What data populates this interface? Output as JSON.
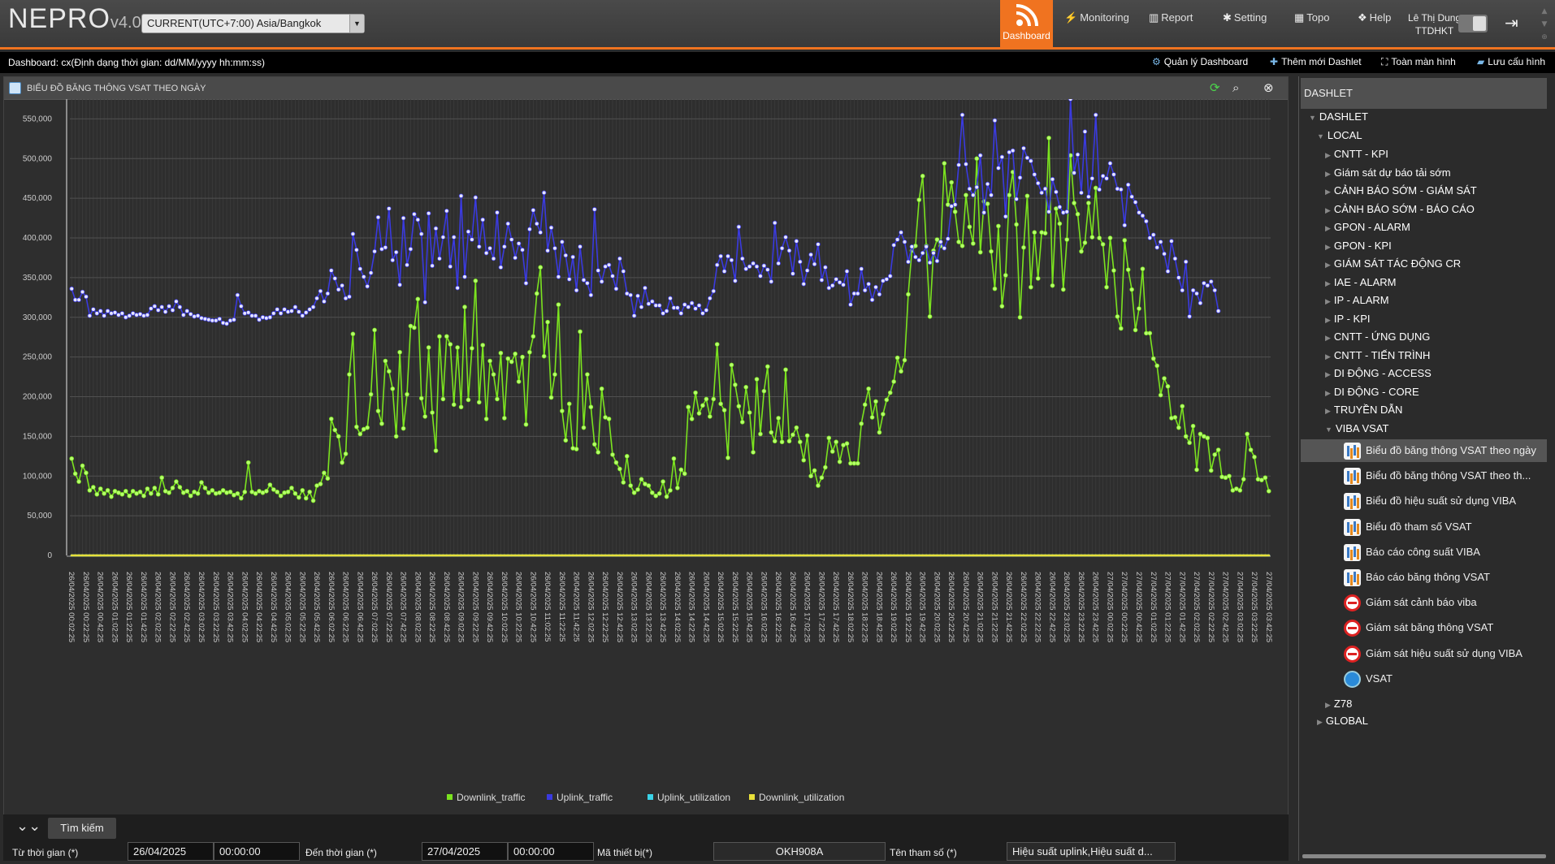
{
  "app": {
    "logo": "NEPRO",
    "version": "v4.0",
    "timezone": "CURRENT(UTC+7:00) Asia/Bangkok",
    "user_name": "Lê Thị Dung",
    "user_org": "TTDHKT"
  },
  "nav": {
    "dashboard": "Dashboard",
    "monitoring": "Monitoring",
    "report": "Report",
    "setting": "Setting",
    "topo": "Topo",
    "help": "Help"
  },
  "subbar": {
    "label": "Dashboard: cx(Định dạng thời gian: dd/MM/yyyy hh:mm:ss)",
    "manage": "Quản lý Dashboard",
    "add": "Thêm mới Dashlet",
    "fullscreen": "Toàn màn hình",
    "save": "Lưu cấu hình"
  },
  "panel": {
    "title": "BIỂU ĐỒ BĂNG THÔNG VSAT THEO NGÀY"
  },
  "chart_data": {
    "type": "line",
    "title": "",
    "xlabel": "",
    "ylabel": "",
    "ylim": [
      0,
      575000
    ],
    "yticks": [
      0,
      50000,
      100000,
      150000,
      200000,
      250000,
      300000,
      350000,
      400000,
      450000,
      500000,
      550000
    ],
    "ytick_labels": [
      "0",
      "50,000",
      "100,000",
      "150,000",
      "200,000",
      "250,000",
      "300,000",
      "350,000",
      "400,000",
      "450,000",
      "500,000",
      "550,000"
    ],
    "x_start": "26/04/2025 00:02:25",
    "x_step_minutes": 5,
    "x_label_every": 4,
    "grid": true,
    "legend_position": "bottom",
    "series": [
      {
        "name": "Downlink_traffic",
        "color": "#7be31f",
        "values": [
          122000,
          103000,
          93000,
          113000,
          104000,
          82000,
          86000,
          77000,
          84000,
          78000,
          82000,
          74000,
          81000,
          79000,
          77000,
          81000,
          75000,
          81000,
          78000,
          80000,
          75000,
          84000,
          78000,
          85000,
          77000,
          98000,
          81000,
          79000,
          85000,
          93000,
          86000,
          79000,
          81000,
          75000,
          80000,
          78000,
          92000,
          85000,
          79000,
          82000,
          78000,
          79000,
          82000,
          79000,
          80000,
          76000,
          78000,
          72000,
          80000,
          117000,
          80000,
          78000,
          81000,
          79000,
          81000,
          89000,
          83000,
          80000,
          75000,
          79000,
          80000,
          85000,
          78000,
          73000,
          82000,
          72000,
          80000,
          69000,
          88000,
          90000,
          104000,
          97000,
          172000,
          158000,
          150000,
          117000,
          128000,
          228000,
          279000,
          162000,
          153000,
          159000,
          161000,
          203000,
          284000,
          182000,
          166000,
          245000,
          232000,
          210000,
          150000,
          256000,
          160000,
          203000,
          289000,
          287000,
          323000,
          198000,
          175000,
          262000,
          180000,
          132000,
          276000,
          197000,
          276000,
          266000,
          190000,
          262000,
          187000,
          313000,
          196000,
          261000,
          346000,
          193000,
          265000,
          172000,
          245000,
          228000,
          197000,
          255000,
          173000,
          248000,
          244000,
          254000,
          219000,
          250000,
          165000,
          256000,
          276000,
          330000,
          363000,
          251000,
          294000,
          199000,
          228000,
          316000,
          182000,
          145000,
          191000,
          135000,
          134000,
          282000,
          161000,
          228000,
          187000,
          140000,
          130000,
          210000,
          174000,
          172000,
          127000,
          117000,
          109000,
          92000,
          125000,
          88000,
          79000,
          83000,
          96000,
          90000,
          88000,
          79000,
          75000,
          78000,
          93000,
          74000,
          82000,
          122000,
          85000,
          108000,
          103000,
          187000,
          172000,
          205000,
          179000,
          189000,
          197000,
          175000,
          197000,
          266000,
          191000,
          183000,
          123000,
          240000,
          215000,
          188000,
          168000,
          212000,
          180000,
          130000,
          222000,
          153000,
          207000,
          238000,
          155000,
          144000,
          173000,
          143000,
          234000,
          144000,
          152000,
          161000,
          143000,
          120000,
          151000,
          100000,
          107000,
          88000,
          98000,
          111000,
          148000,
          131000,
          143000,
          118000,
          139000,
          141000,
          116000,
          116000,
          116000,
          166000,
          190000,
          210000,
          174000,
          194000,
          155000,
          178000,
          196000,
          205000,
          219000,
          249000,
          232000,
          246000,
          329000,
          384000,
          390000,
          448000,
          478000,
          390000,
          301000,
          384000,
          398000,
          390000,
          494000,
          442000,
          470000,
          433000,
          395000,
          390000,
          454000,
          414000,
          393000,
          500000,
          382000,
          446000,
          443000,
          383000,
          336000,
          415000,
          314000,
          353000,
          454000,
          483000,
          417000,
          300000,
          388000,
          453000,
          338000,
          407000,
          349000,
          407000,
          406000,
          526000,
          340000,
          437000,
          418000,
          335000,
          398000,
          504000,
          444000,
          430000,
          383000,
          394000,
          444000,
          401000,
          463000,
          400000,
          392000,
          338000,
          400000,
          359000,
          301000,
          286000,
          397000,
          360000,
          335000,
          284000,
          311000,
          361000,
          280000,
          280000,
          248000,
          239000,
          202000,
          223000,
          213000,
          173000,
          174000,
          161000,
          188000,
          150000,
          142000,
          163000,
          108000,
          153000,
          150000,
          148000,
          107000,
          127000,
          133000,
          99000,
          98000,
          100000,
          82000,
          84000,
          82000,
          96000,
          153000,
          133000,
          124000,
          96000,
          95000,
          98000,
          81000
        ]
      },
      {
        "name": "Uplink_traffic",
        "color": "#3a3ae0",
        "values": [
          336000,
          322000,
          322000,
          332000,
          326000,
          302000,
          310000,
          305000,
          308000,
          302000,
          308000,
          305000,
          306000,
          303000,
          305000,
          300000,
          302000,
          305000,
          303000,
          304000,
          302000,
          303000,
          311000,
          314000,
          309000,
          313000,
          307000,
          314000,
          309000,
          320000,
          313000,
          303000,
          308000,
          304000,
          301000,
          302000,
          299000,
          298000,
          297000,
          296000,
          296000,
          298000,
          293000,
          292000,
          296000,
          297000,
          328000,
          314000,
          305000,
          306000,
          302000,
          302000,
          297000,
          300000,
          299000,
          300000,
          305000,
          310000,
          305000,
          310000,
          307000,
          308000,
          313000,
          307000,
          302000,
          306000,
          310000,
          313000,
          324000,
          333000,
          320000,
          330000,
          359000,
          349000,
          335000,
          340000,
          324000,
          326000,
          405000,
          385000,
          361000,
          351000,
          339000,
          356000,
          383000,
          426000,
          386000,
          388000,
          437000,
          372000,
          382000,
          341000,
          425000,
          366000,
          386000,
          430000,
          423000,
          405000,
          319000,
          431000,
          365000,
          412000,
          374000,
          401000,
          434000,
          364000,
          401000,
          337000,
          453000,
          351000,
          408000,
          398000,
          451000,
          389000,
          423000,
          381000,
          387000,
          374000,
          432000,
          363000,
          389000,
          418000,
          398000,
          375000,
          393000,
          385000,
          343000,
          411000,
          435000,
          418000,
          407000,
          457000,
          384000,
          413000,
          387000,
          351000,
          395000,
          378000,
          348000,
          376000,
          334000,
          389000,
          347000,
          343000,
          328000,
          436000,
          359000,
          345000,
          364000,
          366000,
          352000,
          336000,
          374000,
          358000,
          330000,
          328000,
          302000,
          327000,
          313000,
          337000,
          317000,
          320000,
          315000,
          315000,
          305000,
          308000,
          324000,
          312000,
          312000,
          305000,
          316000,
          313000,
          318000,
          311000,
          315000,
          305000,
          309000,
          324000,
          333000,
          366000,
          377000,
          358000,
          377000,
          372000,
          346000,
          414000,
          374000,
          361000,
          364000,
          368000,
          364000,
          352000,
          365000,
          360000,
          345000,
          419000,
          368000,
          387000,
          401000,
          384000,
          355000,
          396000,
          370000,
          342000,
          359000,
          379000,
          367000,
          392000,
          347000,
          363000,
          337000,
          340000,
          348000,
          344000,
          341000,
          358000,
          316000,
          330000,
          330000,
          361000,
          334000,
          342000,
          322000,
          338000,
          329000,
          346000,
          348000,
          352000,
          391000,
          398000,
          407000,
          395000,
          370000,
          389000,
          376000,
          372000,
          381000,
          389000,
          369000,
          381000,
          371000,
          395000,
          387000,
          399000,
          440000,
          442000,
          492000,
          555000,
          493000,
          462000,
          454000,
          464000,
          504000,
          432000,
          468000,
          454000,
          548000,
          488000,
          502000,
          427000,
          508000,
          510000,
          449000,
          476000,
          513000,
          501000,
          497000,
          480000,
          469000,
          457000,
          462000,
          433000,
          474000,
          458000,
          439000,
          432000,
          433000,
          575000,
          482000,
          505000,
          457000,
          534000,
          452000,
          475000,
          555000,
          461000,
          478000,
          475000,
          494000,
          480000,
          462000,
          461000,
          416000,
          467000,
          452000,
          445000,
          432000,
          428000,
          421000,
          400000,
          404000,
          388000,
          395000,
          380000,
          358000,
          396000,
          374000,
          350000,
          334000,
          370000,
          301000,
          334000,
          330000,
          318000,
          343000,
          340000,
          345000,
          334000,
          308000
        ]
      },
      {
        "name": "Uplink_utilization",
        "color": "#3ad3e8",
        "values": [
          0
        ]
      },
      {
        "name": "Downlink_utilization",
        "color": "#e8e03a",
        "values": [
          0
        ]
      }
    ]
  },
  "filter": {
    "search_tab": "Tìm kiếm",
    "from_label": "Từ thời gian (*)",
    "from_date": "26/04/2025",
    "from_time": "00:00:00",
    "to_label": "Đến thời gian (*)",
    "to_date": "27/04/2025",
    "to_time": "00:00:00",
    "device_label": "Mã thiết bị(*)",
    "device_value": "OKH908A",
    "param_label": "Tên tham số (*)",
    "param_value": "Hiệu suất uplink,Hiệu suất d..."
  },
  "sidebar": {
    "header": "DASHLET",
    "root": "DASHLET",
    "local": "LOCAL",
    "groups": [
      "CNTT - KPI",
      "Giám sát dự báo tải sớm",
      "CẢNH BÁO SỚM - GIÁM SÁT",
      "CẢNH BÁO SỚM - BÁO CÁO",
      "GPON - ALARM",
      "GPON - KPI",
      "GIÁM SÁT TÁC ĐỘNG CR",
      "IAE - ALARM",
      "IP - ALARM",
      "IP - KPI",
      "CNTT - ỨNG DỤNG",
      "CNTT - TIẾN TRÌNH",
      "DI ĐỘNG - ACCESS",
      "DI ĐỘNG - CORE",
      "TRUYỀN DẪN",
      "VIBA VSAT"
    ],
    "leaves": [
      {
        "label": "Biểu đồ băng thông VSAT theo ngày",
        "icon": "chart-icon"
      },
      {
        "label": "Biểu đồ băng thông VSAT theo th...",
        "icon": "chart-icon"
      },
      {
        "label": "Biểu đồ hiệu suất sử dụng VIBA",
        "icon": "chart-icon"
      },
      {
        "label": "Biểu đồ tham số VSAT",
        "icon": "chart-icon"
      },
      {
        "label": "Báo cáo công suất VIBA",
        "icon": "chart-icon"
      },
      {
        "label": "Báo cáo băng thông VSAT",
        "icon": "chart-icon"
      },
      {
        "label": "Giám sát cảnh báo viba",
        "icon": "no-entry-icon"
      },
      {
        "label": "Giám sát băng thông VSAT",
        "icon": "no-entry-icon"
      },
      {
        "label": "Giám sát hiệu suất sử dụng VIBA",
        "icon": "no-entry-icon"
      },
      {
        "label": "VSAT",
        "icon": "alarm-badge-icon"
      }
    ],
    "z78": "Z78",
    "global": "GLOBAL"
  }
}
